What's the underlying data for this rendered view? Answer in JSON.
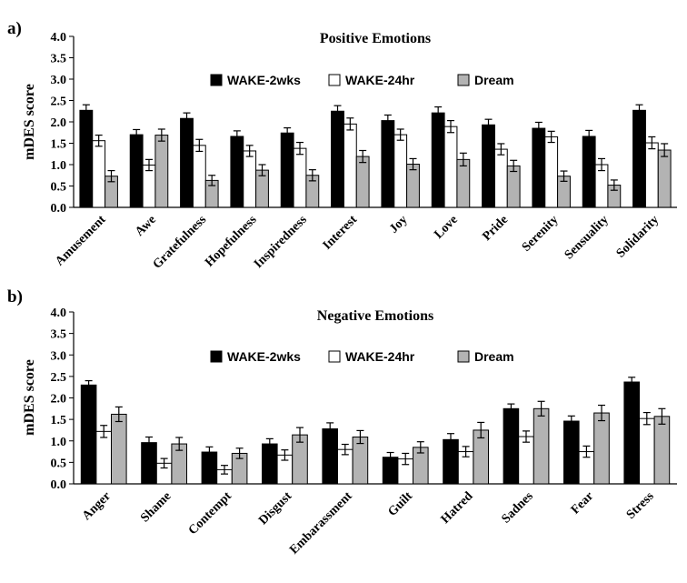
{
  "chart_data": [
    {
      "type": "bar",
      "panel_label": "a)",
      "title": "Positive Emotions",
      "xlabel": "",
      "ylabel": "mDES score",
      "ylim": [
        0,
        4
      ],
      "yticks": [
        "0.0",
        "0.5",
        "1.0",
        "1.5",
        "2.0",
        "2.5",
        "3.0",
        "3.5",
        "4.0"
      ],
      "grid": false,
      "legend_position": "top-center",
      "categories": [
        "Amusement",
        "Awe",
        "Gratefulness",
        "Hopefulness",
        "Inspiredness",
        "Interest",
        "Joy",
        "Love",
        "Pride",
        "Serenity",
        "Sensuality",
        "Solidarity"
      ],
      "series": [
        {
          "name": "WAKE-2wks",
          "color": "#000000",
          "values": [
            2.27,
            1.7,
            2.08,
            1.66,
            1.74,
            2.25,
            2.03,
            2.21,
            1.93,
            1.85,
            1.66,
            2.27
          ],
          "errors": [
            0.13,
            0.12,
            0.13,
            0.13,
            0.12,
            0.13,
            0.13,
            0.14,
            0.13,
            0.14,
            0.14,
            0.13
          ]
        },
        {
          "name": "WAKE-24hr",
          "color": "#ffffff",
          "values": [
            1.56,
            0.99,
            1.45,
            1.32,
            1.38,
            1.95,
            1.7,
            1.89,
            1.36,
            1.65,
            1.0,
            1.51
          ],
          "errors": [
            0.13,
            0.13,
            0.14,
            0.13,
            0.14,
            0.14,
            0.13,
            0.14,
            0.13,
            0.13,
            0.14,
            0.14
          ]
        },
        {
          "name": "Dream",
          "color": "#b3b3b3",
          "values": [
            0.73,
            1.69,
            0.63,
            0.87,
            0.75,
            1.19,
            1.01,
            1.12,
            0.97,
            0.73,
            0.52,
            1.34
          ],
          "errors": [
            0.13,
            0.14,
            0.12,
            0.13,
            0.13,
            0.14,
            0.13,
            0.15,
            0.13,
            0.12,
            0.12,
            0.15
          ]
        }
      ]
    },
    {
      "type": "bar",
      "panel_label": "b)",
      "title": "Negative Emotions",
      "xlabel": "",
      "ylabel": "mDES score",
      "ylim": [
        0,
        4
      ],
      "yticks": [
        "0.0",
        "0.5",
        "1.0",
        "1.5",
        "2.0",
        "2.5",
        "3.0",
        "3.5",
        "4.0"
      ],
      "grid": false,
      "legend_position": "top-center",
      "categories": [
        "Anger",
        "Shame",
        "Contempt",
        "Disgust",
        "Embarassment",
        "Guilt",
        "Hatred",
        "Sadnes",
        "Fear",
        "Stress"
      ],
      "series": [
        {
          "name": "WAKE-2wks",
          "color": "#000000",
          "values": [
            2.3,
            0.96,
            0.74,
            0.93,
            1.28,
            0.62,
            1.03,
            1.75,
            1.46,
            2.37
          ],
          "errors": [
            0.1,
            0.13,
            0.12,
            0.12,
            0.14,
            0.11,
            0.14,
            0.11,
            0.12,
            0.11
          ]
        },
        {
          "name": "WAKE-24hr",
          "color": "#ffffff",
          "values": [
            1.22,
            0.48,
            0.33,
            0.67,
            0.8,
            0.58,
            0.75,
            1.1,
            0.75,
            1.52
          ],
          "errors": [
            0.14,
            0.11,
            0.1,
            0.12,
            0.12,
            0.13,
            0.12,
            0.13,
            0.13,
            0.14
          ]
        },
        {
          "name": "Dream",
          "color": "#b3b3b3",
          "values": [
            1.62,
            0.93,
            0.71,
            1.14,
            1.09,
            0.85,
            1.25,
            1.75,
            1.65,
            1.57
          ],
          "errors": [
            0.17,
            0.15,
            0.12,
            0.17,
            0.15,
            0.13,
            0.18,
            0.17,
            0.18,
            0.18
          ]
        }
      ]
    }
  ]
}
